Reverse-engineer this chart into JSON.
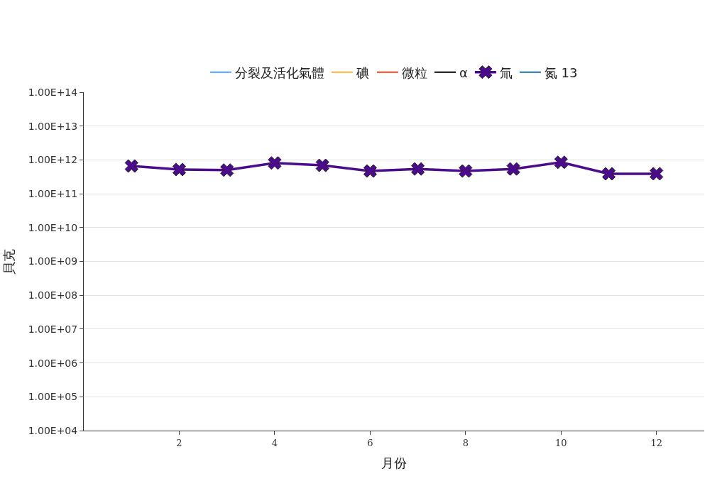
{
  "chart_data": {
    "type": "line",
    "xlabel": "月份",
    "ylabel": "貝克",
    "log": "y",
    "grid": "y",
    "legend": "top",
    "x": [
      1,
      2,
      3,
      4,
      5,
      6,
      7,
      8,
      9,
      10,
      11,
      12
    ],
    "xlim": [
      0,
      13
    ],
    "xticks": [
      2,
      4,
      6,
      8,
      10,
      12
    ],
    "ylim": [
      10000,
      100000000000000
    ],
    "yticks": [
      {
        "value": 10000,
        "label": "1.00E+04"
      },
      {
        "value": 100000,
        "label": "1.00E+05"
      },
      {
        "value": 1000000,
        "label": "1.00E+06"
      },
      {
        "value": 10000000,
        "label": "1.00E+07"
      },
      {
        "value": 100000000,
        "label": "1.00E+08"
      },
      {
        "value": 1000000000,
        "label": "1.00E+09"
      },
      {
        "value": 10000000000,
        "label": "1.00E+10"
      },
      {
        "value": 100000000000,
        "label": "1.00E+11"
      },
      {
        "value": 1000000000000,
        "label": "1.00E+12"
      },
      {
        "value": 10000000000000,
        "label": "1.00E+13"
      },
      {
        "value": 100000000000000,
        "label": "1.00E+14"
      }
    ],
    "series": [
      {
        "name": "分裂及活化氣體",
        "color": "#4a9cff",
        "marker": "none",
        "values": [
          null,
          null,
          null,
          null,
          null,
          null,
          null,
          null,
          null,
          null,
          null,
          null
        ]
      },
      {
        "name": "碘",
        "color": "#ffb13b",
        "marker": "none",
        "values": [
          null,
          null,
          null,
          null,
          null,
          null,
          null,
          null,
          null,
          null,
          null,
          null
        ]
      },
      {
        "name": "微粒",
        "color": "#f0421c",
        "marker": "none",
        "values": [
          null,
          null,
          null,
          null,
          null,
          null,
          null,
          null,
          null,
          null,
          null,
          null
        ]
      },
      {
        "name": "α",
        "color": "#000000",
        "marker": "none",
        "values": [
          null,
          null,
          null,
          null,
          null,
          null,
          null,
          null,
          null,
          null,
          null,
          null
        ]
      },
      {
        "name": "氚",
        "color": "#4b0b8c",
        "marker": "cross",
        "values": [
          660000000000,
          520000000000,
          500000000000,
          810000000000,
          690000000000,
          470000000000,
          540000000000,
          470000000000,
          540000000000,
          850000000000,
          390000000000,
          390000000000
        ]
      },
      {
        "name": "氮 13",
        "color": "#1f6fa0",
        "marker": "none",
        "values": [
          null,
          null,
          null,
          null,
          null,
          null,
          null,
          null,
          null,
          null,
          null,
          null
        ]
      }
    ]
  }
}
